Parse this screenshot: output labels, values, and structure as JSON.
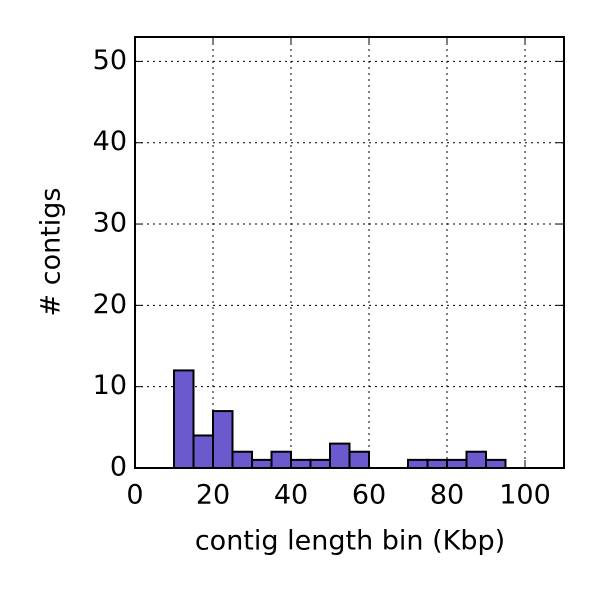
{
  "chart_data": {
    "type": "histogram",
    "xlabel": "contig length bin (Kbp)",
    "ylabel": "# contigs",
    "bins": [
      0,
      5,
      10,
      15,
      20,
      25,
      30,
      35,
      40,
      45,
      50,
      55,
      60,
      65,
      70,
      75,
      80,
      85,
      90,
      95,
      100,
      105,
      110
    ],
    "values": [
      0,
      0,
      12,
      4,
      7,
      2,
      1,
      2,
      1,
      1,
      3,
      2,
      0,
      0,
      1,
      1,
      1,
      2,
      1,
      0,
      0,
      0
    ],
    "color": "#6a5acd",
    "xlim": [
      0,
      110
    ],
    "xticks": [
      0,
      20,
      40,
      60,
      80,
      100
    ],
    "ylim": [
      0,
      53
    ],
    "yticks": [
      0,
      10,
      20,
      30,
      40,
      50
    ],
    "grid": true
  }
}
